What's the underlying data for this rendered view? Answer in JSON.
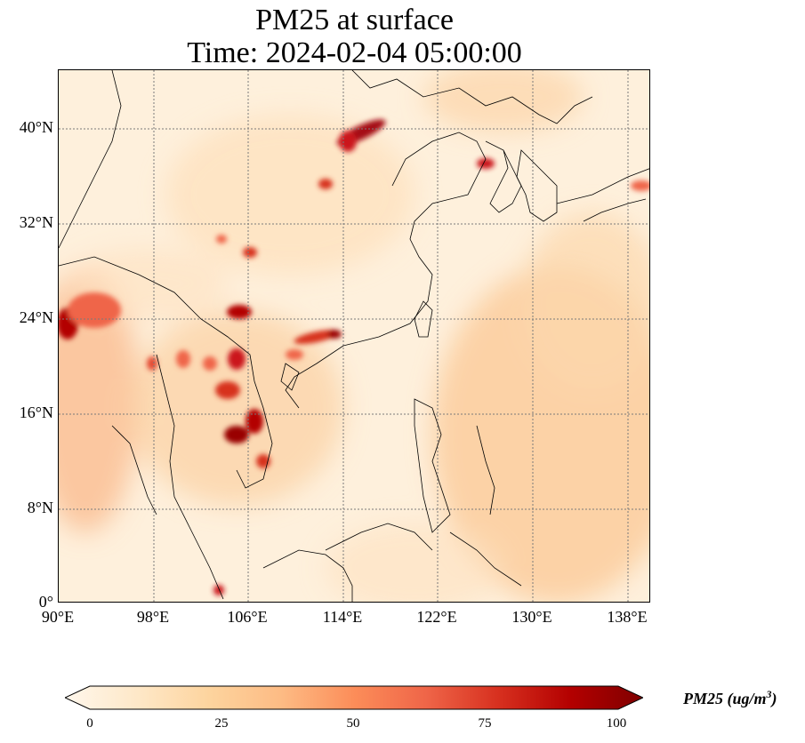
{
  "title": {
    "line1": "PM25 at surface",
    "line2": "Time: 2024-02-04 05:00:00"
  },
  "map": {
    "lon_labels": [
      "90°E",
      "98°E",
      "106°E",
      "114°E",
      "122°E",
      "130°E",
      "138°E"
    ],
    "lat_labels": [
      "40°N",
      "32°N",
      "24°N",
      "16°N",
      "8°N",
      "0°"
    ],
    "lon_range": [
      90,
      140
    ],
    "lat_range": [
      0,
      45
    ],
    "gridlines": true,
    "gridline_style": "dotted"
  },
  "colorbar": {
    "label_text": "PM25 (ug/m",
    "label_sup": "3",
    "label_close": ")",
    "ticks": [
      "0",
      "25",
      "50",
      "75",
      "100"
    ],
    "range": [
      0,
      100
    ],
    "extend": "both",
    "colormap": "OrRd"
  }
}
